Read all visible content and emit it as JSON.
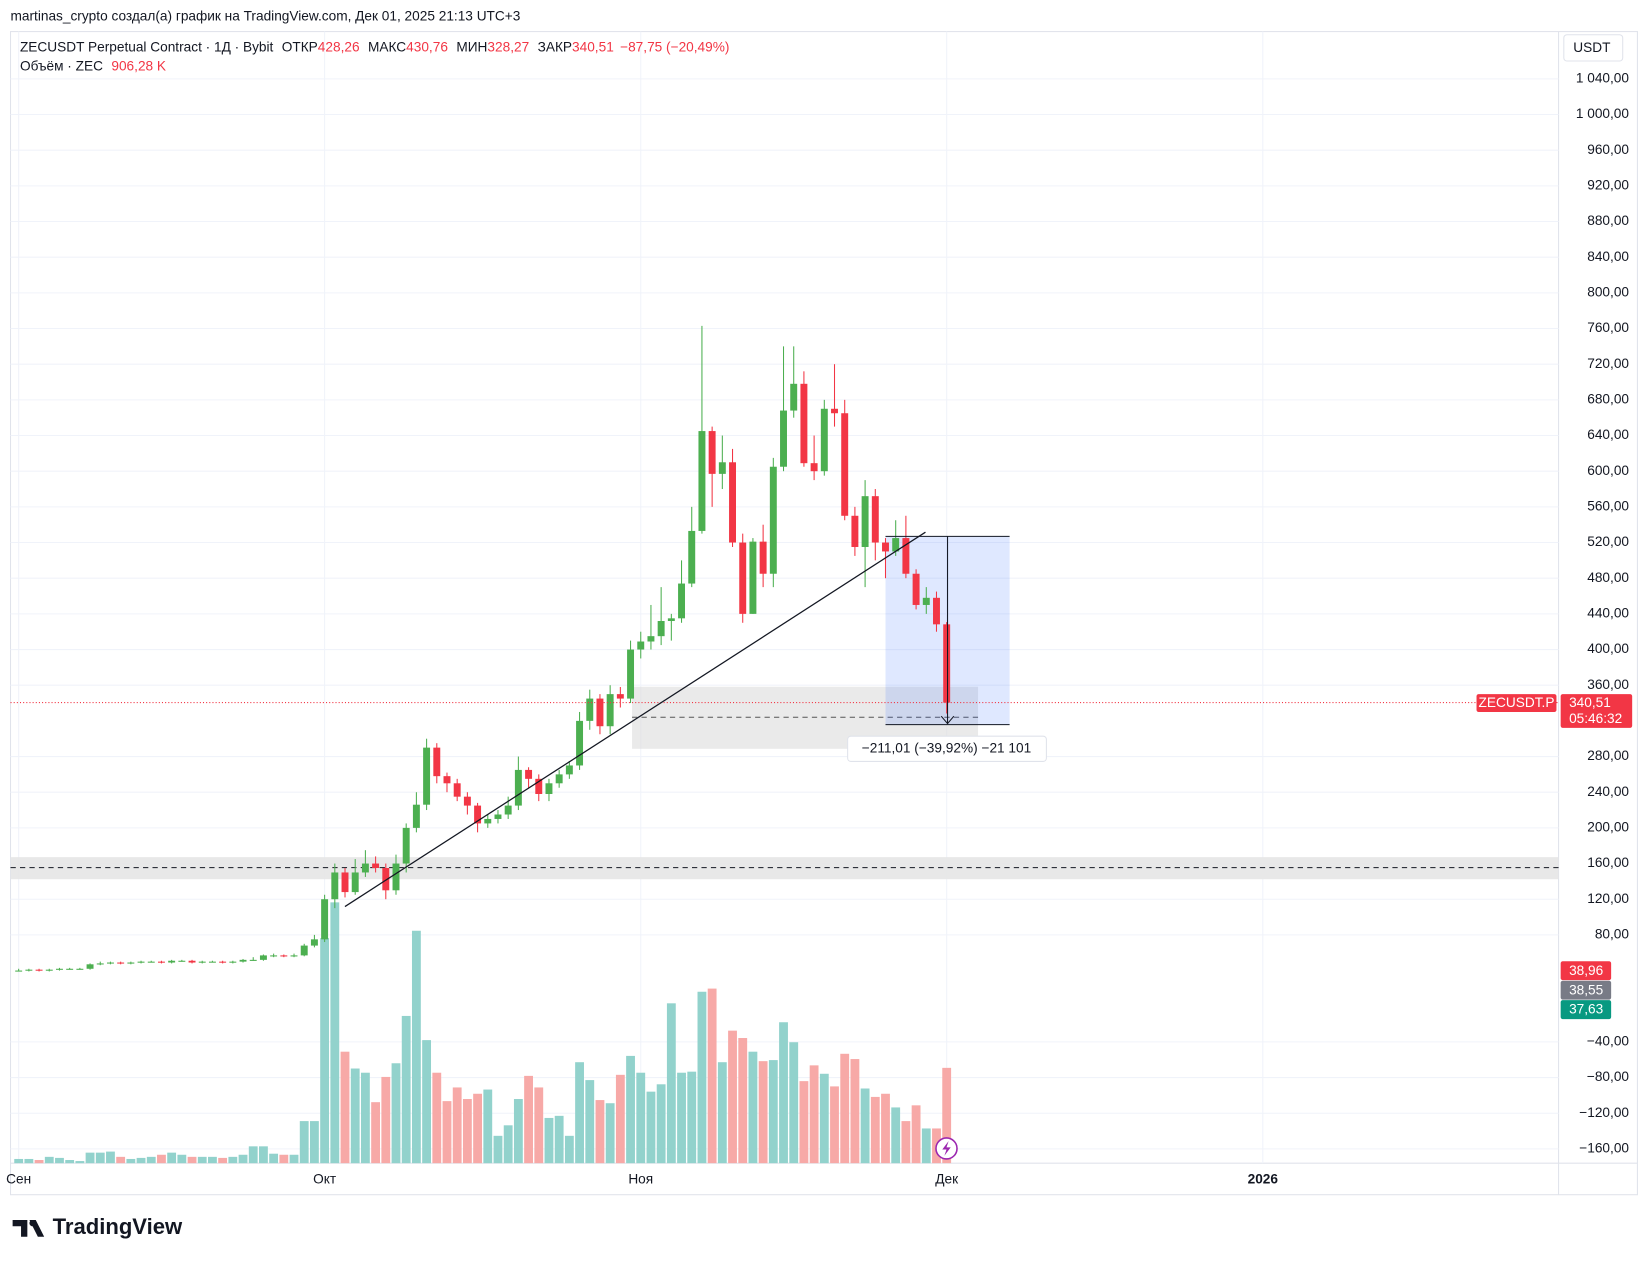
{
  "header": "martinas_crypto создал(а) график на TradingView.com, Дек 01, 2025 21:13 UTC+3",
  "logo": "TradingView",
  "chart_data": {
    "type": "candlestick",
    "title": "ZECUSDT Perpetual Contract · 1Д · Bybit",
    "legend": [
      {
        "label": "ОТКР",
        "value_label": "428,26"
      },
      {
        "label": "МАКС",
        "value_label": "430,76"
      },
      {
        "label": "МИН",
        "value_label": "328,27"
      },
      {
        "label": "ЗАКР",
        "value_label": "340,51"
      }
    ],
    "change": "−87,75 (−20,49%)",
    "volume_title": "Объём · ZEC",
    "volume_label": "906,28 K",
    "currency": "USDT",
    "open": [
      40,
      40,
      41,
      40,
      41,
      42,
      42,
      42,
      47,
      48,
      49,
      48,
      49,
      50,
      50,
      49,
      51,
      51,
      49,
      50,
      50,
      49,
      50,
      52,
      52,
      57,
      57,
      56,
      57,
      68,
      75,
      120,
      150,
      128,
      150,
      160,
      155,
      130,
      160,
      200,
      226,
      290,
      258,
      250,
      235,
      225,
      205,
      210,
      215,
      225,
      265,
      255,
      238,
      250,
      260,
      270,
      320,
      345,
      314,
      350,
      345,
      400,
      409,
      415,
      432,
      435,
      474,
      533,
      645,
      597,
      610,
      520,
      440,
      521,
      485,
      605,
      668,
      698,
      609,
      600,
      670,
      665,
      550,
      515,
      572,
      520,
      510,
      525,
      485,
      450,
      458,
      428.26
    ],
    "high": [
      42,
      42,
      42,
      42,
      43,
      43,
      43,
      48,
      50,
      50,
      50,
      50,
      51,
      51,
      51,
      52,
      52,
      52,
      51,
      51,
      51,
      51,
      53,
      55,
      58,
      59,
      58,
      59,
      70,
      80,
      125,
      160,
      155,
      165,
      175,
      168,
      160,
      170,
      205,
      240,
      300,
      295,
      262,
      255,
      240,
      228,
      215,
      220,
      235,
      280,
      268,
      260,
      255,
      265,
      275,
      330,
      355,
      350,
      360,
      358,
      410,
      420,
      450,
      470,
      440,
      500,
      560,
      763,
      650,
      640,
      625,
      530,
      525,
      540,
      615,
      740,
      740,
      712,
      640,
      680,
      720,
      680,
      560,
      590,
      580,
      525,
      545,
      550,
      490,
      470,
      465,
      430.76
    ],
    "low": [
      39,
      39,
      39,
      39,
      40,
      41,
      41,
      41,
      46,
      47,
      47,
      47,
      48,
      49,
      48,
      48,
      50,
      48,
      48,
      49,
      48,
      48,
      49,
      51,
      51,
      55,
      55,
      55,
      56,
      66,
      72,
      110,
      122,
      125,
      145,
      150,
      120,
      125,
      150,
      195,
      220,
      250,
      240,
      230,
      215,
      195,
      200,
      205,
      210,
      220,
      245,
      230,
      230,
      245,
      255,
      265,
      310,
      305,
      305,
      335,
      340,
      390,
      400,
      405,
      410,
      430,
      470,
      530,
      560,
      580,
      515,
      430,
      440,
      470,
      470,
      600,
      660,
      605,
      590,
      595,
      650,
      545,
      505,
      470,
      500,
      480,
      505,
      480,
      445,
      440,
      420,
      328.27
    ],
    "close": [
      40,
      41,
      40,
      41,
      42,
      42,
      42,
      47,
      48,
      49,
      48,
      49,
      50,
      50,
      49,
      51,
      51,
      49,
      50,
      50,
      49,
      50,
      52,
      52,
      57,
      57,
      56,
      57,
      68,
      75,
      120,
      150,
      128,
      150,
      160,
      155,
      130,
      160,
      200,
      226,
      290,
      258,
      250,
      235,
      225,
      205,
      210,
      215,
      225,
      265,
      255,
      238,
      250,
      260,
      270,
      320,
      345,
      314,
      350,
      345,
      400,
      409,
      415,
      432,
      435,
      474,
      533,
      645,
      597,
      610,
      520,
      440,
      521,
      485,
      605,
      668,
      698,
      609,
      600,
      670,
      665,
      550,
      515,
      572,
      520,
      510,
      525,
      485,
      450,
      458,
      428.26,
      340.51
    ],
    "volume": [
      40,
      40,
      30,
      60,
      50,
      30,
      20,
      100,
      100,
      110,
      60,
      40,
      50,
      60,
      80,
      100,
      80,
      60,
      60,
      60,
      50,
      60,
      80,
      160,
      160,
      90,
      80,
      80,
      400,
      400,
      2140,
      2480,
      1060,
      900,
      860,
      580,
      820,
      950,
      1400,
      2210,
      1170,
      860,
      590,
      720,
      610,
      660,
      700,
      260,
      360,
      610,
      830,
      720,
      430,
      450,
      260,
      960,
      790,
      600,
      570,
      840,
      1020,
      860,
      680,
      750,
      1520,
      860,
      870,
      1630,
      1660,
      960,
      1260,
      1190,
      1060,
      970,
      980,
      1340,
      1150,
      780,
      930,
      850,
      730,
      1040,
      990,
      710,
      630,
      660,
      530,
      400,
      550,
      330,
      330,
      906.28
    ],
    "up_color": "#4caf50",
    "down_color": "#f23645",
    "volume_up_color": "#92d2cc",
    "volume_down_color": "#f7a9a7",
    "xlim": [
      -0.8,
      151
    ],
    "xticks": [
      {
        "value": 0,
        "label": "Сен"
      },
      {
        "value": 30,
        "label": "Окт"
      },
      {
        "value": 61,
        "label": "Ноя"
      },
      {
        "value": 91,
        "label": "Дек"
      },
      {
        "value": 122,
        "label": "2026"
      }
    ],
    "ylim": [
      -176,
      1093
    ],
    "yticks": [
      {
        "value": 1040,
        "label": "1 040,00"
      },
      {
        "value": 1000,
        "label": "1 000,00"
      },
      {
        "value": 960,
        "label": "960,00"
      },
      {
        "value": 920,
        "label": "920,00"
      },
      {
        "value": 880,
        "label": "880,00"
      },
      {
        "value": 840,
        "label": "840,00"
      },
      {
        "value": 800,
        "label": "800,00"
      },
      {
        "value": 760,
        "label": "760,00"
      },
      {
        "value": 720,
        "label": "720,00"
      },
      {
        "value": 680,
        "label": "680,00"
      },
      {
        "value": 640,
        "label": "640,00"
      },
      {
        "value": 600,
        "label": "600,00"
      },
      {
        "value": 560,
        "label": "560,00"
      },
      {
        "value": 520,
        "label": "520,00"
      },
      {
        "value": 480,
        "label": "480,00"
      },
      {
        "value": 440,
        "label": "440,00"
      },
      {
        "value": 400,
        "label": "400,00"
      },
      {
        "value": 360,
        "label": "360,00"
      },
      {
        "value": 280,
        "label": "280,00"
      },
      {
        "value": 240,
        "label": "240,00"
      },
      {
        "value": 200,
        "label": "200,00"
      },
      {
        "value": 160,
        "label": "160,00"
      },
      {
        "value": 120,
        "label": "120,00"
      },
      {
        "value": 80,
        "label": "80,00"
      },
      {
        "value": -40,
        "label": "−40,00"
      },
      {
        "value": -80,
        "label": "−80,00"
      },
      {
        "value": -120,
        "label": "−120,00"
      },
      {
        "value": -160,
        "label": "−160,00"
      }
    ],
    "volume_lim": [
      0,
      10760
    ],
    "grid": true,
    "last_price": {
      "symbol": "ZECUSDT.P",
      "price": "340,51",
      "timer": "05:46:32"
    },
    "indicator_labels": [
      {
        "label": "38,96",
        "color": "#f23645"
      },
      {
        "label": "38,55",
        "color": "#787b86"
      },
      {
        "label": "37,63",
        "color": "#089981"
      }
    ],
    "measure_label": "−211,01 (−39,92%) −21 101"
  }
}
